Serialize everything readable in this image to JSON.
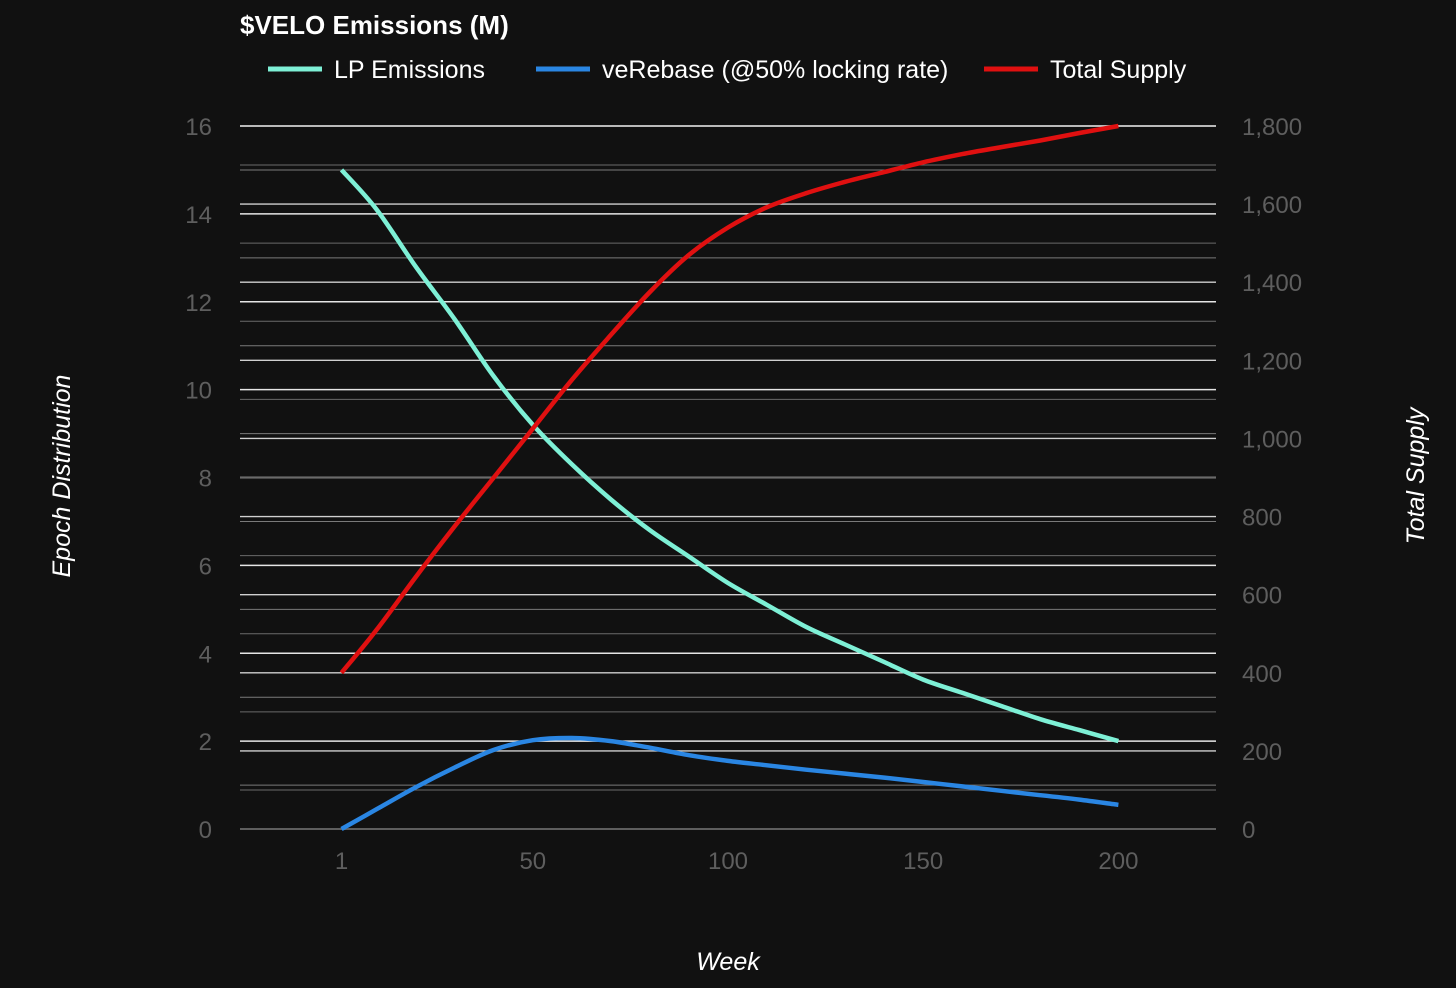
{
  "chart_data": {
    "type": "line",
    "title": "$VELO Emissions (M)",
    "xlabel": "Week",
    "ylabel": "Epoch Distribution",
    "y2label": "Total Supply",
    "x_ticks": [
      "1",
      "50",
      "100",
      "150",
      "200"
    ],
    "x_tick_values": [
      1,
      50,
      100,
      150,
      200
    ],
    "xlim": [
      -25,
      225
    ],
    "ylim": [
      0,
      16
    ],
    "y_ticks": [
      "0",
      "2",
      "4",
      "6",
      "8",
      "10",
      "12",
      "14",
      "16"
    ],
    "y_tick_values": [
      0,
      2,
      4,
      6,
      8,
      10,
      12,
      14,
      16
    ],
    "y2lim": [
      0,
      1800
    ],
    "y2_ticks": [
      "0",
      "200",
      "400",
      "600",
      "800",
      "1,000",
      "1,200",
      "1,400",
      "1,600",
      "1,800"
    ],
    "y2_tick_values": [
      0,
      200,
      400,
      600,
      800,
      1000,
      1200,
      1400,
      1600,
      1800
    ],
    "grid": true,
    "legend_position": "top-left",
    "series": [
      {
        "name": "LP Emissions",
        "axis": "left",
        "color": "#7ef0d6",
        "x": [
          1,
          10,
          20,
          30,
          40,
          50,
          60,
          70,
          80,
          90,
          100,
          110,
          120,
          130,
          140,
          150,
          160,
          170,
          180,
          190,
          200
        ],
        "y": [
          15,
          14.1,
          12.8,
          11.6,
          10.3,
          9.2,
          8.3,
          7.5,
          6.8,
          6.2,
          5.6,
          5.1,
          4.6,
          4.2,
          3.8,
          3.4,
          3.1,
          2.8,
          2.5,
          2.25,
          2.0
        ]
      },
      {
        "name": "veRebase (@50% locking rate)",
        "axis": "left",
        "color": "#2a86e3",
        "x": [
          1,
          10,
          20,
          30,
          40,
          50,
          60,
          70,
          80,
          90,
          100,
          110,
          120,
          130,
          140,
          150,
          160,
          170,
          180,
          190,
          200
        ],
        "y": [
          0,
          0.45,
          0.95,
          1.4,
          1.8,
          2.02,
          2.07,
          2.0,
          1.85,
          1.68,
          1.55,
          1.45,
          1.35,
          1.26,
          1.17,
          1.07,
          0.97,
          0.87,
          0.77,
          0.67,
          0.55
        ]
      },
      {
        "name": "Total Supply",
        "axis": "right",
        "color": "#e01010",
        "x": [
          1,
          10,
          20,
          30,
          40,
          50,
          60,
          70,
          80,
          90,
          100,
          110,
          120,
          130,
          140,
          150,
          160,
          170,
          180,
          190,
          200
        ],
        "y": [
          400,
          510,
          645,
          775,
          900,
          1025,
          1150,
          1265,
          1375,
          1470,
          1540,
          1592,
          1628,
          1657,
          1682,
          1707,
          1728,
          1746,
          1763,
          1782,
          1800
        ]
      }
    ]
  }
}
